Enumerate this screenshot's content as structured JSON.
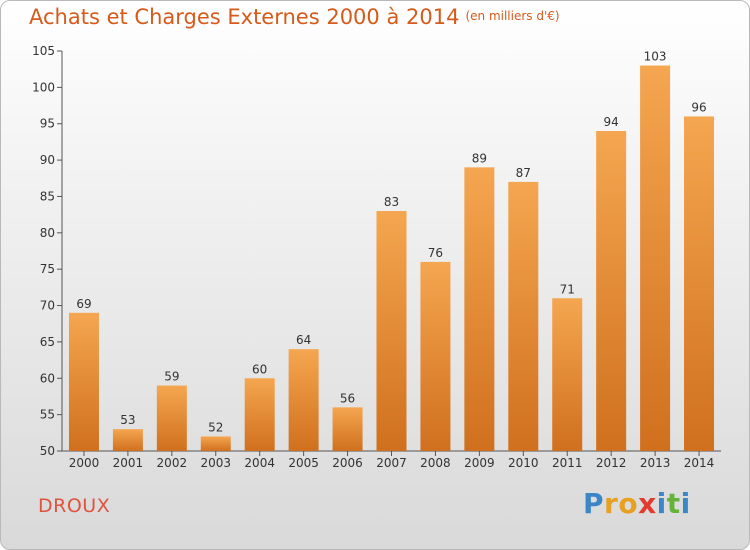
{
  "title": "Achats et Charges Externes 2000 à 2014",
  "subtitle": "(en milliers d'€)",
  "town": "DROUX",
  "logo": {
    "letters": [
      "P",
      "r",
      "o",
      "x",
      "i",
      "t",
      "i"
    ],
    "colors": [
      "#3a86c8",
      "#e8a020",
      "#e8a020",
      "#e23b2e",
      "#3a86c8",
      "#67b33a",
      "#3a86c8"
    ]
  },
  "colors": {
    "title": "#d65a1a",
    "bar_top": "#f5a650",
    "bar_bottom": "#d0701e",
    "town": "#e0533f"
  },
  "chart_data": {
    "type": "bar",
    "title": "Achats et Charges Externes 2000 à 2014",
    "subtitle": "(en milliers d'€)",
    "categories": [
      "2000",
      "2001",
      "2002",
      "2003",
      "2004",
      "2005",
      "2006",
      "2007",
      "2008",
      "2009",
      "2010",
      "2011",
      "2012",
      "2013",
      "2014"
    ],
    "values": [
      69,
      53,
      59,
      52,
      60,
      64,
      56,
      83,
      76,
      89,
      87,
      71,
      94,
      103,
      96
    ],
    "ylim": [
      50,
      105
    ],
    "yticks": [
      50,
      55,
      60,
      65,
      70,
      75,
      80,
      85,
      90,
      95,
      100,
      105
    ],
    "grid": false,
    "legend": "none",
    "data_labels": true
  }
}
